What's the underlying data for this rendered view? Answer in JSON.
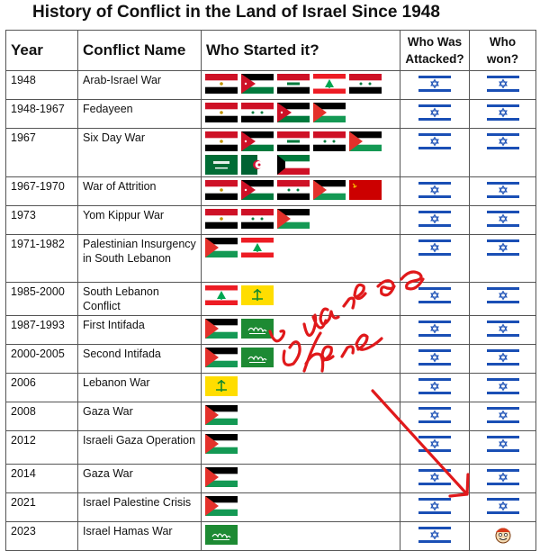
{
  "title": "History of Conflict in the Land of Israel Since 1948",
  "headers": {
    "year": "Year",
    "conflict": "Conflict Name",
    "started": "Who Started it?",
    "attacked": "Who Was Attacked?",
    "won": "Who won?"
  },
  "rows": [
    {
      "year": "1948",
      "name": "Arab-Israel War",
      "started": [
        "flag-egypt",
        "flag-jordan",
        "flag-iraq",
        "flag-lebanon",
        "flag-syria"
      ],
      "attacked": "flag-israel",
      "won": "flag-israel"
    },
    {
      "year": "1948-1967",
      "name": "Fedayeen",
      "started": [
        "flag-egypt",
        "flag-syria",
        "flag-jordan",
        "flag-palestine"
      ],
      "attacked": "flag-israel",
      "won": "flag-israel"
    },
    {
      "year": "1967",
      "name": "Six Day War",
      "started": [
        "flag-egypt",
        "flag-jordan",
        "flag-iraq",
        "flag-syria",
        "flag-palestine",
        "flag-saudi-arabia",
        "flag-algeria",
        "flag-kuwait"
      ],
      "attacked": "flag-israel",
      "won": "flag-israel"
    },
    {
      "year": "1967-1970",
      "name": "War of Attrition",
      "started": [
        "flag-egypt",
        "flag-jordan",
        "flag-syria",
        "flag-palestine",
        "flag-soviet-union"
      ],
      "attacked": "flag-israel",
      "won": "flag-israel"
    },
    {
      "year": "1973",
      "name": "Yom Kippur War",
      "started": [
        "flag-egypt",
        "flag-syria",
        "flag-palestine"
      ],
      "attacked": "flag-israel",
      "won": "flag-israel"
    },
    {
      "year": "1971-1982",
      "name": "Palestinian Insurgency in South Lebanon",
      "started": [
        "flag-palestine",
        "flag-lebanon"
      ],
      "attacked": "flag-israel",
      "won": "flag-israel"
    },
    {
      "year": "1985-2000",
      "name": "South Lebanon Conflict",
      "started": [
        "flag-lebanon",
        "flag-hezbollah"
      ],
      "attacked": "flag-israel",
      "won": "flag-israel"
    },
    {
      "year": "1987-1993",
      "name": "First Intifada",
      "started": [
        "flag-palestine",
        "flag-hamas"
      ],
      "attacked": "flag-israel",
      "won": "flag-israel"
    },
    {
      "year": "2000-2005",
      "name": "Second Intifada",
      "started": [
        "flag-palestine",
        "flag-hamas"
      ],
      "attacked": "flag-israel",
      "won": "flag-israel"
    },
    {
      "year": "2006",
      "name": "Lebanon War",
      "started": [
        "flag-hezbollah"
      ],
      "attacked": "flag-israel",
      "won": "flag-israel"
    },
    {
      "year": "2008",
      "name": "Gaza War",
      "started": [
        "flag-palestine"
      ],
      "attacked": "flag-israel",
      "won": "flag-israel"
    },
    {
      "year": "2012",
      "name": "Israeli Gaza Operation",
      "started": [
        "flag-palestine"
      ],
      "attacked": "flag-israel",
      "won": "flag-israel"
    },
    {
      "year": "2014",
      "name": "Gaza War",
      "started": [
        "flag-palestine"
      ],
      "attacked": "flag-israel",
      "won": "flag-israel"
    },
    {
      "year": "2021",
      "name": "Israel Palestine Crisis",
      "started": [
        "flag-palestine"
      ],
      "attacked": "flag-israel",
      "won": "flag-israel"
    },
    {
      "year": "2023",
      "name": "Israel Hamas War",
      "started": [
        "flag-hamas"
      ],
      "attacked": "flag-israel",
      "won": "cartoon-face-icon"
    }
  ],
  "annotation": {
    "text": "you are here",
    "color": "#e0191b",
    "arrow": "arrow-down-right"
  }
}
